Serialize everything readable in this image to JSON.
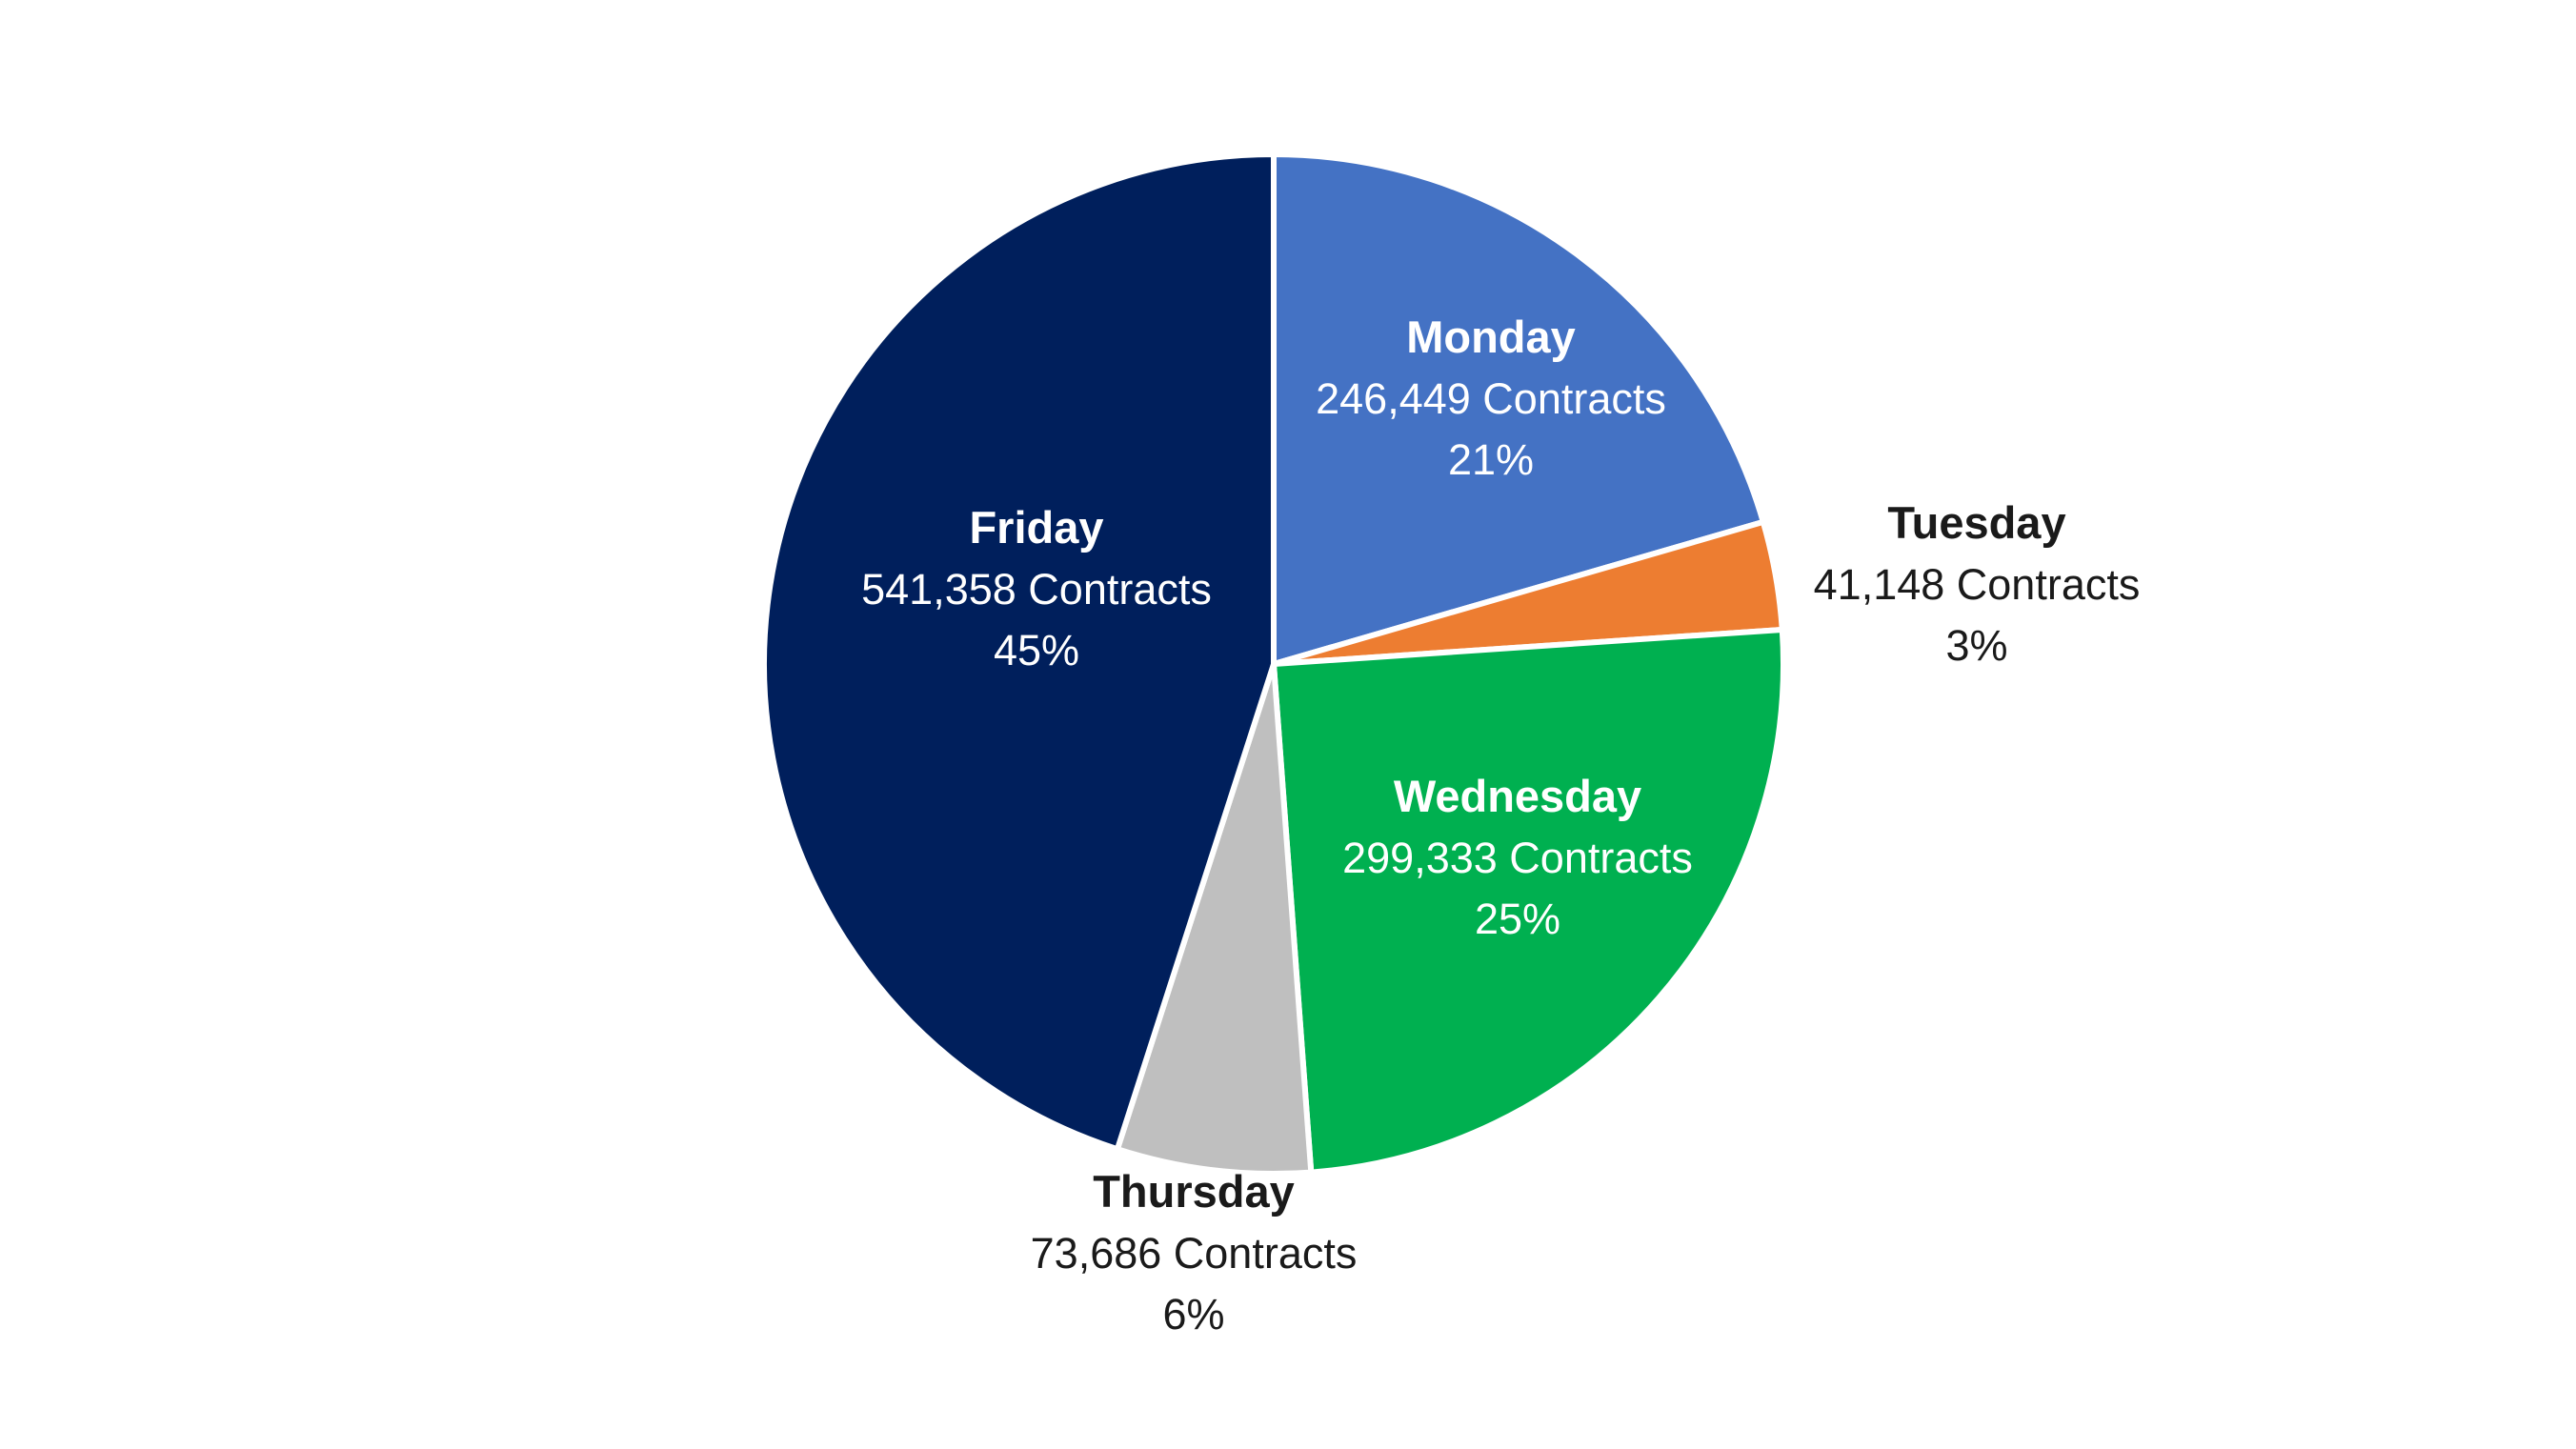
{
  "chart_data": {
    "type": "pie",
    "title": "",
    "unit": "Contracts",
    "slices": [
      {
        "name": "Monday",
        "value": 246449,
        "value_label": "246,449 Contracts",
        "percent_label": "21%",
        "color": "#4472C4",
        "label_color": "#ffffff",
        "label_position": "inside"
      },
      {
        "name": "Tuesday",
        "value": 41148,
        "value_label": "41,148 Contracts",
        "percent_label": "3%",
        "color": "#ED7D31",
        "label_color": "#1a1a1a",
        "label_position": "outside"
      },
      {
        "name": "Wednesday",
        "value": 299333,
        "value_label": "299,333 Contracts",
        "percent_label": "25%",
        "color": "#00B050",
        "label_color": "#ffffff",
        "label_position": "inside"
      },
      {
        "name": "Thursday",
        "value": 73686,
        "value_label": "73,686 Contracts",
        "percent_label": "6%",
        "color": "#BFBFBF",
        "label_color": "#1a1a1a",
        "label_position": "outside"
      },
      {
        "name": "Friday",
        "value": 541358,
        "value_label": "541,358 Contracts",
        "percent_label": "45%",
        "color": "#001F5C",
        "label_color": "#ffffff",
        "label_position": "inside"
      }
    ],
    "start_angle": "12 o'clock",
    "direction": "clockwise",
    "legend": "none"
  }
}
